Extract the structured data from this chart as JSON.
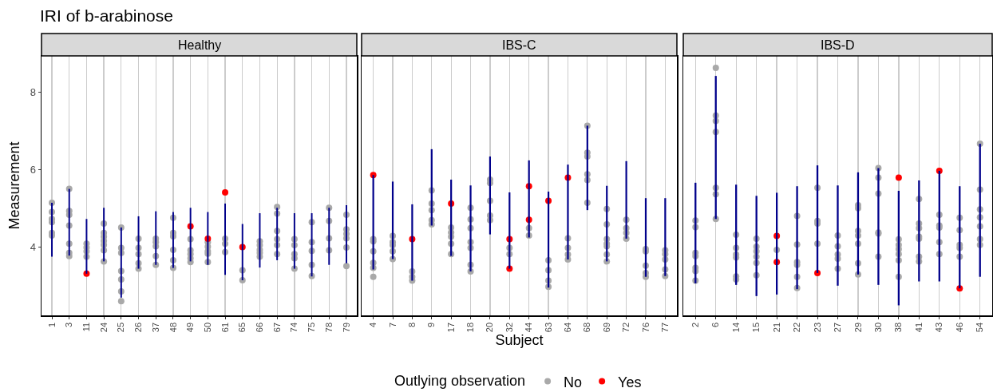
{
  "chart_data": [
    {
      "type": "scatter",
      "title": "IRI of b-arabinose",
      "subtitle": "Healthy",
      "ylabel": "Measurement",
      "ylim": [
        2.22,
        8.95
      ],
      "yticks": [
        4,
        6,
        8
      ],
      "grid": "x",
      "marker": "circle",
      "categories": [
        "1",
        "3",
        "11",
        "24",
        "25",
        "26",
        "37",
        "48",
        "49",
        "50",
        "61",
        "65",
        "66",
        "67",
        "74",
        "75",
        "78",
        "79"
      ],
      "series": [
        {
          "type": "bar",
          "color": "#00008b",
          "base": [
            3.74,
            3.77,
            3.3,
            3.62,
            2.68,
            3.43,
            3.53,
            3.45,
            3.62,
            3.53,
            3.27,
            3.13,
            3.46,
            3.65,
            3.43,
            3.23,
            3.53,
            3.57
          ],
          "values": [
            1.4,
            1.73,
            1.42,
            1.39,
            1.82,
            1.36,
            1.39,
            1.45,
            1.39,
            1.37,
            1.85,
            1.46,
            1.41,
            1.36,
            1.44,
            1.64,
            1.48,
            1.51
          ]
        },
        {
          "color": "#a9a9a9",
          "x": [
            "1",
            "1",
            "1",
            "1",
            "1",
            "1",
            "3",
            "3",
            "3",
            "3",
            "3",
            "3",
            "3",
            "11",
            "11",
            "11",
            "11",
            "24",
            "24",
            "24",
            "24",
            "24",
            "24",
            "24",
            "25",
            "25",
            "25",
            "25",
            "25",
            "25",
            "25",
            "26",
            "26",
            "26",
            "26",
            "26",
            "37",
            "37",
            "37",
            "37",
            "37",
            "48",
            "48",
            "48",
            "48",
            "48",
            "48",
            "49",
            "49",
            "49",
            "49",
            "49",
            "50",
            "50",
            "50",
            "50",
            "50",
            "61",
            "61",
            "61",
            "65",
            "65",
            "66",
            "66",
            "66",
            "66",
            "66",
            "67",
            "67",
            "67",
            "67",
            "67",
            "67",
            "74",
            "74",
            "74",
            "74",
            "74",
            "75",
            "75",
            "75",
            "75",
            "75",
            "78",
            "78",
            "78",
            "78",
            "79",
            "79",
            "79",
            "79",
            "79",
            "79"
          ],
          "values": [
            5.14,
            4.9,
            4.72,
            4.64,
            4.36,
            4.29,
            5.5,
            4.93,
            4.83,
            4.55,
            4.08,
            3.84,
            3.76,
            4.08,
            3.98,
            3.88,
            3.74,
            4.6,
            4.36,
            4.26,
            4.15,
            4.05,
            3.91,
            3.62,
            4.5,
            3.97,
            3.84,
            3.37,
            3.15,
            2.84,
            2.59,
            4.21,
            3.97,
            3.81,
            3.57,
            3.43,
            4.21,
            4.12,
            4.01,
            3.76,
            3.53,
            4.75,
            4.36,
            4.27,
            3.92,
            3.65,
            3.45,
            4.2,
            3.91,
            3.81,
            3.7,
            3.6,
            4.12,
            4.0,
            3.88,
            3.82,
            3.6,
            4.21,
            4.08,
            3.86,
            3.39,
            3.13,
            4.14,
            4.04,
            3.92,
            3.84,
            3.74,
            5.03,
            4.86,
            4.41,
            4.2,
            4.04,
            3.81,
            4.2,
            4.04,
            3.81,
            3.7,
            3.43,
            4.64,
            4.12,
            3.89,
            3.53,
            3.24,
            5.01,
            4.67,
            4.22,
            3.91,
            4.83,
            4.45,
            4.33,
            4.22,
            3.98,
            3.5
          ]
        },
        {
          "color": "#ff0000",
          "x": [
            "11",
            "49",
            "50",
            "61",
            "65"
          ],
          "values": [
            3.3,
            4.53,
            4.21,
            5.41,
            3.99
          ]
        }
      ]
    },
    {
      "type": "scatter",
      "subtitle": "IBS-C",
      "xlabel": "Subject",
      "legend_title": "Outlying observation",
      "legend": "bottom",
      "ylim": [
        2.22,
        8.95
      ],
      "yticks": [
        4,
        6,
        8
      ],
      "grid": "x",
      "marker": "circle",
      "tick_labels": "x",
      "categories": [
        "4",
        "7",
        "8",
        "9",
        "17",
        "18",
        "20",
        "32",
        "44",
        "63",
        "64",
        "68",
        "69",
        "72",
        "76",
        "77"
      ],
      "series": [
        {
          "type": "bar",
          "color": "#00008b",
          "base": [
            3.41,
            3.68,
            3.12,
            4.55,
            3.76,
            3.36,
            4.32,
            3.43,
            4.24,
            2.94,
            3.67,
            4.95,
            3.62,
            4.21,
            3.22,
            3.24
          ],
          "values": [
            2.45,
            2.01,
            1.98,
            1.98,
            1.98,
            2.23,
            2.02,
            1.98,
            2.0,
            2.49,
            2.46,
            2.19,
            1.96,
            2.01,
            2.04,
            2.02
          ]
        },
        {
          "name": "No",
          "color": "#a9a9a9",
          "x": [
            "4",
            "4",
            "4",
            "4",
            "4",
            "4",
            "7",
            "7",
            "7",
            "7",
            "7",
            "8",
            "8",
            "8",
            "9",
            "9",
            "9",
            "9",
            "9",
            "17",
            "17",
            "17",
            "17",
            "17",
            "18",
            "18",
            "18",
            "18",
            "18",
            "18",
            "18",
            "20",
            "20",
            "20",
            "20",
            "20",
            "32",
            "32",
            "44",
            "44",
            "63",
            "63",
            "63",
            "63",
            "64",
            "64",
            "64",
            "64",
            "68",
            "68",
            "68",
            "68",
            "68",
            "68",
            "69",
            "69",
            "69",
            "69",
            "69",
            "69",
            "69",
            "72",
            "72",
            "72",
            "72",
            "76",
            "76",
            "76",
            "76",
            "76",
            "77",
            "77",
            "77",
            "77",
            "77"
          ],
          "values": [
            4.2,
            4.14,
            3.88,
            3.58,
            3.45,
            3.22,
            4.28,
            4.12,
            4.04,
            3.88,
            3.68,
            3.36,
            3.22,
            3.12,
            5.46,
            5.12,
            4.95,
            4.69,
            4.58,
            4.5,
            4.37,
            4.26,
            4.08,
            3.81,
            5.01,
            4.71,
            4.48,
            4.12,
            3.97,
            3.53,
            3.36,
            5.74,
            5.65,
            5.19,
            4.81,
            4.69,
            3.97,
            3.81,
            4.48,
            4.29,
            3.65,
            3.39,
            3.12,
            2.96,
            4.22,
            3.97,
            3.8,
            3.67,
            7.14,
            6.44,
            6.34,
            5.88,
            5.73,
            5.14,
            4.98,
            4.58,
            4.2,
            4.08,
            4.01,
            3.8,
            3.62,
            4.7,
            4.48,
            4.36,
            4.21,
            3.94,
            3.88,
            3.51,
            3.32,
            3.22,
            3.91,
            3.81,
            3.67,
            3.41,
            3.24
          ]
        },
        {
          "name": "Yes",
          "color": "#ff0000",
          "x": [
            "4",
            "8",
            "17",
            "32",
            "32",
            "44",
            "44",
            "63",
            "64"
          ],
          "values": [
            5.86,
            4.2,
            5.12,
            4.2,
            3.43,
            5.57,
            4.7,
            5.19,
            5.79
          ]
        }
      ]
    },
    {
      "type": "scatter",
      "subtitle": "IBS-D",
      "ylim": [
        2.22,
        8.95
      ],
      "yticks": [
        4,
        6,
        8
      ],
      "grid": "x",
      "marker": "circle",
      "tick_labels": "x",
      "categories": [
        "2",
        "6",
        "14",
        "15",
        "21",
        "22",
        "23",
        "27",
        "29",
        "30",
        "38",
        "41",
        "43",
        "46",
        "54"
      ],
      "series": [
        {
          "type": "bar",
          "color": "#00008b",
          "base": [
            3.05,
            4.72,
            3.01,
            2.72,
            2.76,
            2.9,
            3.32,
            2.99,
            3.28,
            3.01,
            2.48,
            3.1,
            3.1,
            2.92,
            3.22
          ],
          "values": [
            2.61,
            3.71,
            2.6,
            2.6,
            2.64,
            2.67,
            2.79,
            2.6,
            2.65,
            3.03,
            2.97,
            2.62,
            2.87,
            2.65,
            3.45
          ]
        },
        {
          "color": "#a9a9a9",
          "x": [
            "2",
            "2",
            "2",
            "2",
            "2",
            "2",
            "2",
            "6",
            "6",
            "6",
            "6",
            "6",
            "6",
            "6",
            "14",
            "14",
            "14",
            "14",
            "14",
            "14",
            "15",
            "15",
            "15",
            "15",
            "15",
            "15",
            "21",
            "22",
            "22",
            "22",
            "22",
            "22",
            "22",
            "23",
            "23",
            "23",
            "23",
            "27",
            "27",
            "27",
            "27",
            "27",
            "29",
            "29",
            "29",
            "29",
            "29",
            "29",
            "29",
            "30",
            "30",
            "30",
            "30",
            "30",
            "30",
            "38",
            "38",
            "38",
            "38",
            "38",
            "38",
            "41",
            "41",
            "41",
            "41",
            "41",
            "41",
            "41",
            "43",
            "43",
            "43",
            "43",
            "43",
            "46",
            "46",
            "46",
            "46",
            "46",
            "54",
            "54",
            "54",
            "54",
            "54",
            "54",
            "54"
          ],
          "values": [
            4.68,
            4.51,
            3.84,
            3.76,
            3.45,
            3.37,
            3.12,
            8.64,
            7.4,
            7.26,
            6.98,
            5.53,
            5.36,
            4.72,
            4.31,
            3.97,
            3.8,
            3.72,
            3.23,
            3.15,
            4.21,
            4.0,
            3.88,
            3.74,
            3.58,
            3.26,
            3.92,
            4.8,
            4.06,
            3.6,
            3.53,
            3.22,
            2.93,
            5.53,
            4.67,
            4.6,
            4.08,
            4.29,
            4.01,
            3.8,
            3.69,
            3.43,
            5.08,
            5.0,
            4.41,
            4.29,
            4.08,
            3.57,
            3.28,
            6.04,
            5.79,
            5.38,
            4.37,
            4.34,
            3.74,
            4.19,
            4.05,
            3.94,
            3.81,
            3.65,
            3.22,
            5.24,
            4.6,
            4.48,
            4.26,
            4.21,
            3.74,
            3.62,
            4.83,
            4.55,
            4.5,
            4.12,
            3.81,
            4.75,
            4.43,
            4.05,
            3.97,
            3.74,
            6.67,
            5.48,
            4.97,
            4.76,
            4.53,
            4.2,
            4.05
          ]
        },
        {
          "color": "#ff0000",
          "x": [
            "21",
            "21",
            "23",
            "38",
            "43",
            "46"
          ],
          "values": [
            4.28,
            3.6,
            3.32,
            5.79,
            5.97,
            2.92
          ]
        }
      ]
    }
  ]
}
